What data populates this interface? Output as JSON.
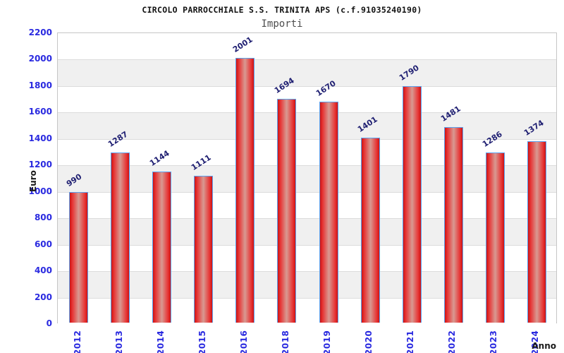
{
  "chart_data": {
    "type": "bar",
    "title": "CIRCOLO PARROCCHIALE S.S. TRINITA APS (c.f.91035240190)",
    "subtitle": "Importi",
    "xlabel": "Anno",
    "ylabel": "Euro",
    "categories": [
      "2012",
      "2013",
      "2014",
      "2015",
      "2016",
      "2018",
      "2019",
      "2020",
      "2021",
      "2022",
      "2023",
      "2024"
    ],
    "values": [
      990,
      1287,
      1144,
      1111,
      2001,
      1694,
      1670,
      1401,
      1790,
      1481,
      1286,
      1374
    ],
    "ylim": [
      0,
      2200
    ],
    "ytick_step": 200,
    "yticks": [
      0,
      200,
      400,
      600,
      800,
      1000,
      1200,
      1400,
      1600,
      1800,
      2000,
      2200
    ],
    "grid": "horizontal gridlines with alternating gray/white bands",
    "legend": "none",
    "value_labels": "above each bar, rotated ~35deg",
    "x_tick_rotation": 90,
    "colors": {
      "bar_edge_red": "#cc1414",
      "bar_bright_red": "#e73535",
      "bar_center_light": "#d89a92",
      "bar_border_blue": "#5aa2ef",
      "axis_tick_label_blue": "#2a2ae0",
      "value_label_navy": "#1f1f72",
      "band_gray": "#f0f0f0",
      "frame_gray": "#c6c6c6",
      "title_black": "#111111",
      "subtitle_gray": "#4d4d4d"
    }
  }
}
